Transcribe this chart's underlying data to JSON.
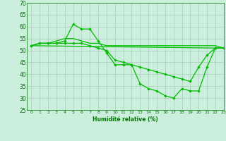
{
  "title": "",
  "xlabel": "Humidité relative (%)",
  "ylabel": "",
  "xlim": [
    -0.5,
    23
  ],
  "ylim": [
    25,
    70
  ],
  "yticks": [
    25,
    30,
    35,
    40,
    45,
    50,
    55,
    60,
    65,
    70
  ],
  "xticks": [
    0,
    1,
    2,
    3,
    4,
    5,
    6,
    7,
    8,
    9,
    10,
    11,
    12,
    13,
    14,
    15,
    16,
    17,
    18,
    19,
    20,
    21,
    22,
    23
  ],
  "background_color": "#cceedd",
  "grid_color": "#aaccbb",
  "line_color": "#00bb00",
  "series": [
    {
      "x": [
        0,
        1,
        2,
        3,
        4,
        5,
        6,
        7,
        8,
        9,
        10,
        11,
        12,
        13,
        14,
        15,
        16,
        17,
        18,
        19,
        20,
        21,
        22,
        23
      ],
      "y": [
        52,
        53,
        53,
        53,
        54,
        61,
        59,
        59,
        54,
        49,
        44,
        44,
        44,
        36,
        34,
        33,
        31,
        30,
        34,
        33,
        33,
        43,
        51,
        51
      ],
      "markers": true
    },
    {
      "x": [
        0,
        1,
        2,
        3,
        4,
        5,
        6,
        7,
        8,
        9,
        10,
        11,
        12,
        13,
        14,
        15,
        16,
        17,
        18,
        19,
        20,
        21,
        22,
        23
      ],
      "y": [
        52,
        53,
        53,
        53,
        53,
        53,
        53,
        52,
        51,
        50,
        46,
        45,
        44,
        43,
        42,
        41,
        40,
        39,
        38,
        37,
        43,
        48,
        51,
        51
      ],
      "markers": true
    },
    {
      "x": [
        0,
        1,
        2,
        3,
        4,
        5,
        6,
        7,
        8,
        9,
        10,
        11,
        12,
        13,
        14,
        15,
        16,
        17,
        18,
        19,
        20,
        21,
        22,
        23
      ],
      "y": [
        52,
        53,
        53,
        54,
        55,
        55,
        54,
        53,
        53,
        52,
        52,
        52,
        52,
        52,
        52,
        52,
        52,
        52,
        52,
        52,
        52,
        52,
        52,
        51
      ],
      "markers": false
    },
    {
      "x": [
        0,
        22,
        23
      ],
      "y": [
        52,
        51,
        51
      ],
      "markers": false
    }
  ]
}
